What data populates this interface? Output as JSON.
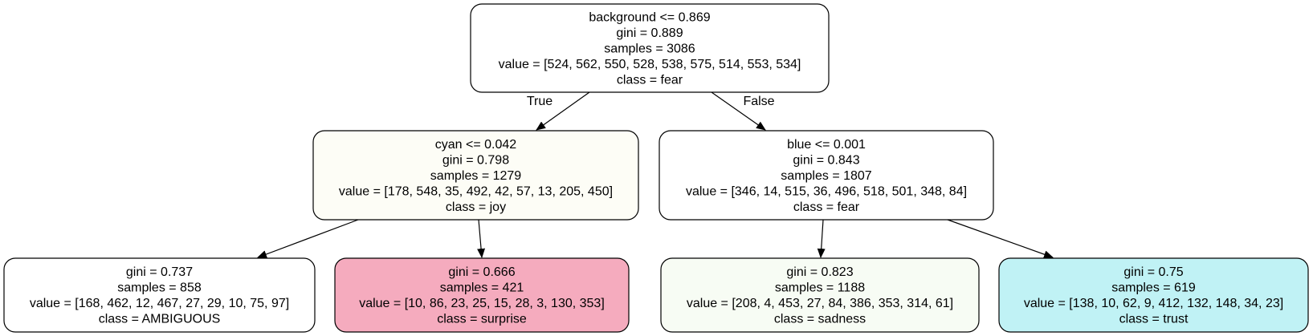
{
  "nodes": [
    {
      "id": "root",
      "fill": "#ffffff",
      "lines": [
        "background <= 0.869",
        "gini = 0.889",
        "samples = 3086",
        "value = [524, 562, 550, 528, 538, 575, 514, 553, 534]",
        "class = fear"
      ]
    },
    {
      "id": "left",
      "fill": "#fdfdf6",
      "lines": [
        "cyan <= 0.042",
        "gini = 0.798",
        "samples = 1279",
        "value = [178, 548, 35, 492, 42, 57, 13, 205, 450]",
        "class = joy"
      ]
    },
    {
      "id": "right",
      "fill": "#ffffff",
      "lines": [
        "blue <= 0.001",
        "gini = 0.843",
        "samples = 1807",
        "value = [346, 14, 515, 36, 496, 518, 501, 348, 84]",
        "class = fear"
      ]
    },
    {
      "id": "leaf1",
      "fill": "#ffffff",
      "lines": [
        "gini = 0.737",
        "samples = 858",
        "value = [168, 462, 12, 467, 27, 29, 10, 75, 97]",
        "class = AMBIGUOUS"
      ]
    },
    {
      "id": "leaf2",
      "fill": "#f5abbe",
      "lines": [
        "gini = 0.666",
        "samples = 421",
        "value = [10, 86, 23, 25, 15, 28, 3, 130, 353]",
        "class = surprise"
      ]
    },
    {
      "id": "leaf3",
      "fill": "#f7fcf4",
      "lines": [
        "gini = 0.823",
        "samples = 1188",
        "value = [208, 4, 453, 27, 84, 386, 353, 314, 61]",
        "class = sadness"
      ]
    },
    {
      "id": "leaf4",
      "fill": "#c0f2f5",
      "lines": [
        "gini = 0.75",
        "samples = 619",
        "value = [138, 10, 62, 9, 412, 132, 148, 34, 23]",
        "class = trust"
      ]
    }
  ],
  "edges": [
    {
      "from": "root",
      "to": "left",
      "label": "True"
    },
    {
      "from": "root",
      "to": "right",
      "label": "False"
    },
    {
      "from": "left",
      "to": "leaf1",
      "label": ""
    },
    {
      "from": "left",
      "to": "leaf2",
      "label": ""
    },
    {
      "from": "right",
      "to": "leaf3",
      "label": ""
    },
    {
      "from": "right",
      "to": "leaf4",
      "label": ""
    }
  ]
}
